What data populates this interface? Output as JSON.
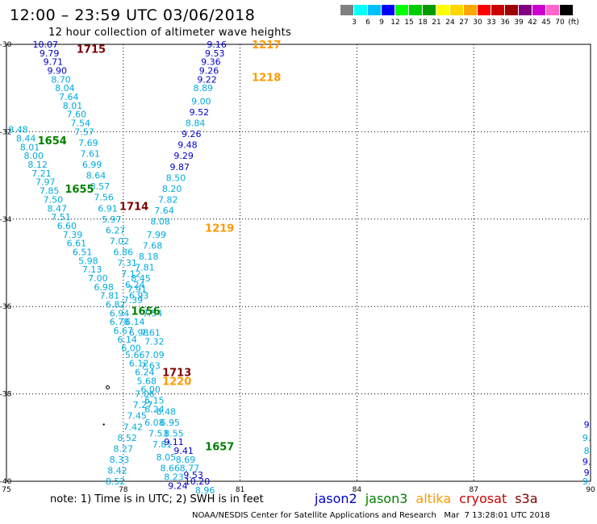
{
  "header": {
    "title": "12:00 – 23:59 UTC 03/06/2018",
    "subtitle": "12 hour collection of altimeter wave heights"
  },
  "colorbar": {
    "colors": [
      "#808080",
      "#00ffff",
      "#00bfff",
      "#0000ff",
      "#00ff00",
      "#00cc00",
      "#009900",
      "#ffff00",
      "#ffd700",
      "#ffa500",
      "#ff0000",
      "#cc0000",
      "#990000",
      "#800080",
      "#cc00cc",
      "#ff66cc",
      "#000000"
    ],
    "labels": [
      "3",
      "6",
      "9",
      "12",
      "15",
      "18",
      "21",
      "24",
      "27",
      "30",
      "33",
      "36",
      "39",
      "42",
      "45",
      "70",
      "(ft)"
    ]
  },
  "axes": {
    "x_ticks": [
      "75",
      "78",
      "81",
      "84",
      "87",
      "90"
    ],
    "y_ticks": [
      "-30",
      "-32",
      "-34",
      "-36",
      "-38",
      "-40"
    ]
  },
  "satellites": [
    {
      "name": "jason2",
      "color": "#0000cc"
    },
    {
      "name": "jason3",
      "color": "#008000"
    },
    {
      "name": "altika",
      "color": "#ff9900"
    },
    {
      "name": "cryosat",
      "color": "#cc0000"
    },
    {
      "name": "s3a",
      "color": "#800000"
    }
  ],
  "chart_data": {
    "type": "scatter",
    "xlim": [
      75,
      90
    ],
    "ylim": [
      -40,
      -30
    ],
    "grid": true,
    "time_labels": [
      {
        "text": "1715",
        "lon": 76.8,
        "lat": -30.1,
        "color": "#800000"
      },
      {
        "text": "1217",
        "lon": 81.3,
        "lat": -30.0,
        "color": "#ff9900"
      },
      {
        "text": "1218",
        "lon": 81.3,
        "lat": -30.75,
        "color": "#ff9900"
      },
      {
        "text": "1654",
        "lon": 75.8,
        "lat": -32.2,
        "color": "#008000"
      },
      {
        "text": "1655",
        "lon": 76.5,
        "lat": -33.3,
        "color": "#008000"
      },
      {
        "text": "1714",
        "lon": 77.9,
        "lat": -33.7,
        "color": "#800000"
      },
      {
        "text": "1219",
        "lon": 80.1,
        "lat": -34.2,
        "color": "#ff9900"
      },
      {
        "text": "1656",
        "lon": 78.2,
        "lat": -36.1,
        "color": "#008000"
      },
      {
        "text": "1713",
        "lon": 79.0,
        "lat": -37.5,
        "color": "#800000"
      },
      {
        "text": "1220",
        "lon": 79.0,
        "lat": -37.7,
        "color": "#ff9900"
      },
      {
        "text": "1657",
        "lon": 80.1,
        "lat": -39.2,
        "color": "#008000"
      }
    ],
    "swh_points": [
      {
        "lon": 76.0,
        "lat": -30.0,
        "v": "10.07",
        "c": "#0000cc"
      },
      {
        "lon": 76.1,
        "lat": -30.2,
        "v": "9.79",
        "c": "#0000cc"
      },
      {
        "lon": 76.2,
        "lat": -30.4,
        "v": "9.71",
        "c": "#0000cc"
      },
      {
        "lon": 76.3,
        "lat": -30.6,
        "v": "9.90",
        "c": "#0000cc"
      },
      {
        "lon": 76.4,
        "lat": -30.8,
        "v": "8.70",
        "c": "#00aadd"
      },
      {
        "lon": 76.5,
        "lat": -31.0,
        "v": "8.04",
        "c": "#00aadd"
      },
      {
        "lon": 76.6,
        "lat": -31.2,
        "v": "7.64",
        "c": "#00aadd"
      },
      {
        "lon": 76.7,
        "lat": -31.4,
        "v": "8.01",
        "c": "#00aadd"
      },
      {
        "lon": 76.8,
        "lat": -31.6,
        "v": "7.60",
        "c": "#00aadd"
      },
      {
        "lon": 76.9,
        "lat": -31.8,
        "v": "7.54",
        "c": "#00aadd"
      },
      {
        "lon": 77.0,
        "lat": -32.0,
        "v": "7.57",
        "c": "#00aadd"
      },
      {
        "lon": 77.1,
        "lat": -32.25,
        "v": "7.69",
        "c": "#00aadd"
      },
      {
        "lon": 77.15,
        "lat": -32.5,
        "v": "7.61",
        "c": "#00aadd"
      },
      {
        "lon": 77.2,
        "lat": -32.75,
        "v": "6.99",
        "c": "#00aadd"
      },
      {
        "lon": 77.3,
        "lat": -33.0,
        "v": "8.64",
        "c": "#00aadd"
      },
      {
        "lon": 77.4,
        "lat": -33.25,
        "v": "8.57",
        "c": "#00aadd"
      },
      {
        "lon": 77.5,
        "lat": -33.5,
        "v": "7.56",
        "c": "#00aadd"
      },
      {
        "lon": 77.6,
        "lat": -33.75,
        "v": "6.91",
        "c": "#00aadd"
      },
      {
        "lon": 77.7,
        "lat": -34.0,
        "v": "5.97",
        "c": "#00aadd"
      },
      {
        "lon": 77.8,
        "lat": -34.25,
        "v": "6.27",
        "c": "#00aadd"
      },
      {
        "lon": 77.9,
        "lat": -34.5,
        "v": "7.02",
        "c": "#00aadd"
      },
      {
        "lon": 78.0,
        "lat": -34.75,
        "v": "6.86",
        "c": "#00aadd"
      },
      {
        "lon": 78.1,
        "lat": -35.0,
        "v": "7.31",
        "c": "#00aadd"
      },
      {
        "lon": 78.2,
        "lat": -35.25,
        "v": "7.12",
        "c": "#00aadd"
      },
      {
        "lon": 78.3,
        "lat": -35.5,
        "v": "6.24",
        "c": "#00aadd"
      },
      {
        "lon": 78.4,
        "lat": -35.75,
        "v": "6.93",
        "c": "#00aadd"
      },
      {
        "lon": 75.3,
        "lat": -31.95,
        "v": "8.48",
        "c": "#00aadd"
      },
      {
        "lon": 75.5,
        "lat": -32.15,
        "v": "8.44",
        "c": "#00aadd"
      },
      {
        "lon": 75.6,
        "lat": -32.35,
        "v": "8.01",
        "c": "#00aadd"
      },
      {
        "lon": 75.7,
        "lat": -32.55,
        "v": "8.00",
        "c": "#00aadd"
      },
      {
        "lon": 75.8,
        "lat": -32.75,
        "v": "8.12",
        "c": "#00aadd"
      },
      {
        "lon": 75.9,
        "lat": -32.95,
        "v": "7.21",
        "c": "#00aadd"
      },
      {
        "lon": 76.0,
        "lat": -33.15,
        "v": "7.97",
        "c": "#00aadd"
      },
      {
        "lon": 76.1,
        "lat": -33.35,
        "v": "7.85",
        "c": "#00aadd"
      },
      {
        "lon": 76.2,
        "lat": -33.55,
        "v": "7.50",
        "c": "#00aadd"
      },
      {
        "lon": 76.3,
        "lat": -33.75,
        "v": "8.47",
        "c": "#00aadd"
      },
      {
        "lon": 76.4,
        "lat": -33.95,
        "v": "7.51",
        "c": "#00aadd"
      },
      {
        "lon": 76.55,
        "lat": -34.15,
        "v": "6.60",
        "c": "#00aadd"
      },
      {
        "lon": 76.7,
        "lat": -34.35,
        "v": "7.39",
        "c": "#00aadd"
      },
      {
        "lon": 76.8,
        "lat": -34.55,
        "v": "6.61",
        "c": "#00aadd"
      },
      {
        "lon": 76.95,
        "lat": -34.75,
        "v": "6.51",
        "c": "#00aadd"
      },
      {
        "lon": 77.1,
        "lat": -34.95,
        "v": "5.98",
        "c": "#00aadd"
      },
      {
        "lon": 77.2,
        "lat": -35.15,
        "v": "7.13",
        "c": "#00aadd"
      },
      {
        "lon": 77.35,
        "lat": -35.35,
        "v": "7.00",
        "c": "#00aadd"
      },
      {
        "lon": 77.5,
        "lat": -35.55,
        "v": "6.98",
        "c": "#00aadd"
      },
      {
        "lon": 77.65,
        "lat": -35.75,
        "v": "7.81",
        "c": "#00aadd"
      },
      {
        "lon": 77.8,
        "lat": -35.95,
        "v": "6.82",
        "c": "#00aadd"
      },
      {
        "lon": 77.9,
        "lat": -36.15,
        "v": "6.94",
        "c": "#00aadd"
      },
      {
        "lon": 77.9,
        "lat": -36.35,
        "v": "6.78",
        "c": "#00aadd"
      },
      {
        "lon": 78.0,
        "lat": -36.55,
        "v": "6.67",
        "c": "#00aadd"
      },
      {
        "lon": 78.1,
        "lat": -36.75,
        "v": "6.14",
        "c": "#00aadd"
      },
      {
        "lon": 78.3,
        "lat": -36.35,
        "v": "6.14",
        "c": "#00aadd"
      },
      {
        "lon": 78.4,
        "lat": -36.6,
        "v": "6.98",
        "c": "#00aadd"
      },
      {
        "lon": 78.2,
        "lat": -36.95,
        "v": "6.00",
        "c": "#00aadd"
      },
      {
        "lon": 78.3,
        "lat": -37.1,
        "v": "5.66",
        "c": "#00aadd"
      },
      {
        "lon": 78.4,
        "lat": -37.3,
        "v": "6.12",
        "c": "#00aadd"
      },
      {
        "lon": 78.55,
        "lat": -37.5,
        "v": "6.24",
        "c": "#00aadd"
      },
      {
        "lon": 78.6,
        "lat": -37.7,
        "v": "5.68",
        "c": "#00aadd"
      },
      {
        "lon": 78.7,
        "lat": -37.9,
        "v": "6.00",
        "c": "#00aadd"
      },
      {
        "lon": 78.55,
        "lat": -38.0,
        "v": "7.06",
        "c": "#00aadd"
      },
      {
        "lon": 78.5,
        "lat": -38.25,
        "v": "7.27",
        "c": "#00aadd"
      },
      {
        "lon": 78.35,
        "lat": -38.5,
        "v": "7.45",
        "c": "#00aadd"
      },
      {
        "lon": 78.25,
        "lat": -38.75,
        "v": "7.42",
        "c": "#00aadd"
      },
      {
        "lon": 78.1,
        "lat": -39.0,
        "v": "8.52",
        "c": "#00aadd"
      },
      {
        "lon": 78.0,
        "lat": -39.25,
        "v": "8.27",
        "c": "#00aadd"
      },
      {
        "lon": 77.9,
        "lat": -39.5,
        "v": "8.33",
        "c": "#00aadd"
      },
      {
        "lon": 77.85,
        "lat": -39.75,
        "v": "8.42",
        "c": "#00aadd"
      },
      {
        "lon": 77.8,
        "lat": -40.0,
        "v": "8.52",
        "c": "#00aadd"
      },
      {
        "lon": 78.7,
        "lat": -36.6,
        "v": "7.61",
        "c": "#00aadd"
      },
      {
        "lon": 78.8,
        "lat": -36.8,
        "v": "7.32",
        "c": "#00aadd"
      },
      {
        "lon": 78.8,
        "lat": -37.1,
        "v": "7.09",
        "c": "#00aadd"
      },
      {
        "lon": 78.7,
        "lat": -37.35,
        "v": "7.63",
        "c": "#00aadd"
      },
      {
        "lon": 78.8,
        "lat": -38.15,
        "v": "6.15",
        "c": "#00aadd"
      },
      {
        "lon": 78.8,
        "lat": -38.35,
        "v": "6.24",
        "c": "#00aadd"
      },
      {
        "lon": 79.1,
        "lat": -38.4,
        "v": "6.48",
        "c": "#00aadd"
      },
      {
        "lon": 78.8,
        "lat": -38.65,
        "v": "6.08",
        "c": "#00aadd"
      },
      {
        "lon": 79.2,
        "lat": -38.65,
        "v": "6.95",
        "c": "#00aadd"
      },
      {
        "lon": 78.9,
        "lat": -38.9,
        "v": "7.53",
        "c": "#00aadd"
      },
      {
        "lon": 79.3,
        "lat": -38.9,
        "v": "8.55",
        "c": "#00aadd"
      },
      {
        "lon": 79.0,
        "lat": -39.15,
        "v": "7.81",
        "c": "#00aadd"
      },
      {
        "lon": 79.1,
        "lat": -39.45,
        "v": "8.05",
        "c": "#00aadd"
      },
      {
        "lon": 79.2,
        "lat": -39.7,
        "v": "8.66",
        "c": "#00aadd"
      },
      {
        "lon": 79.3,
        "lat": -39.9,
        "v": "8.23",
        "c": "#00aadd"
      },
      {
        "lon": 79.6,
        "lat": -39.5,
        "v": "8.69",
        "c": "#00aadd"
      },
      {
        "lon": 79.7,
        "lat": -39.7,
        "v": "8.77",
        "c": "#00aadd"
      },
      {
        "lon": 80.1,
        "lat": -40.2,
        "v": "8.96",
        "c": "#00aadd"
      },
      {
        "lon": 79.3,
        "lat": -39.1,
        "v": "9.11",
        "c": "#0000cc"
      },
      {
        "lon": 79.55,
        "lat": -39.3,
        "v": "9.41",
        "c": "#0000cc"
      },
      {
        "lon": 79.4,
        "lat": -40.1,
        "v": "9.24",
        "c": "#0000cc"
      },
      {
        "lon": 79.8,
        "lat": -39.85,
        "v": "9.53",
        "c": "#0000cc"
      },
      {
        "lon": 79.9,
        "lat": -40.0,
        "v": "10.20",
        "c": "#0000cc"
      },
      {
        "lon": 80.4,
        "lat": -30.0,
        "v": "9.16",
        "c": "#0000cc"
      },
      {
        "lon": 80.35,
        "lat": -30.2,
        "v": "9.53",
        "c": "#0000cc"
      },
      {
        "lon": 80.25,
        "lat": -30.4,
        "v": "9.36",
        "c": "#0000cc"
      },
      {
        "lon": 80.2,
        "lat": -30.6,
        "v": "9.26",
        "c": "#0000cc"
      },
      {
        "lon": 80.15,
        "lat": -30.8,
        "v": "9.22",
        "c": "#0000cc"
      },
      {
        "lon": 80.05,
        "lat": -31.0,
        "v": "8.89",
        "c": "#00aadd"
      },
      {
        "lon": 80.0,
        "lat": -31.3,
        "v": "9.00",
        "c": "#00aadd"
      },
      {
        "lon": 79.95,
        "lat": -31.55,
        "v": "9.52",
        "c": "#0000cc"
      },
      {
        "lon": 79.85,
        "lat": -31.8,
        "v": "8.84",
        "c": "#00aadd"
      },
      {
        "lon": 79.75,
        "lat": -32.05,
        "v": "9.26",
        "c": "#0000cc"
      },
      {
        "lon": 79.65,
        "lat": -32.3,
        "v": "9.48",
        "c": "#0000cc"
      },
      {
        "lon": 79.55,
        "lat": -32.55,
        "v": "9.29",
        "c": "#0000cc"
      },
      {
        "lon": 79.45,
        "lat": -32.8,
        "v": "9.87",
        "c": "#0000cc"
      },
      {
        "lon": 79.35,
        "lat": -33.05,
        "v": "8.50",
        "c": "#00aadd"
      },
      {
        "lon": 79.25,
        "lat": -33.3,
        "v": "8.20",
        "c": "#00aadd"
      },
      {
        "lon": 79.15,
        "lat": -33.55,
        "v": "7.82",
        "c": "#00aadd"
      },
      {
        "lon": 79.05,
        "lat": -33.8,
        "v": "7.64",
        "c": "#00aadd"
      },
      {
        "lon": 78.95,
        "lat": -34.05,
        "v": "8.08",
        "c": "#00aadd"
      },
      {
        "lon": 78.85,
        "lat": -34.35,
        "v": "7.99",
        "c": "#00aadd"
      },
      {
        "lon": 78.75,
        "lat": -34.6,
        "v": "7.68",
        "c": "#00aadd"
      },
      {
        "lon": 78.65,
        "lat": -34.85,
        "v": "8.18",
        "c": "#00aadd"
      },
      {
        "lon": 78.55,
        "lat": -35.1,
        "v": "7.81",
        "c": "#00aadd"
      },
      {
        "lon": 78.45,
        "lat": -35.35,
        "v": "8.45",
        "c": "#00aadd"
      },
      {
        "lon": 78.35,
        "lat": -35.6,
        "v": "7.91",
        "c": "#00aadd"
      },
      {
        "lon": 78.25,
        "lat": -35.85,
        "v": "7.39",
        "c": "#00aadd"
      },
      {
        "lon": 78.75,
        "lat": -36.15,
        "v": "7.54",
        "c": "#00aadd"
      },
      {
        "lon": 89.9,
        "lat": -38.7,
        "v": "9",
        "c": "#0000cc"
      },
      {
        "lon": 89.9,
        "lat": -39.0,
        "v": "9.",
        "c": "#00aadd"
      },
      {
        "lon": 89.9,
        "lat": -39.3,
        "v": "8",
        "c": "#00aadd"
      },
      {
        "lon": 89.9,
        "lat": -39.55,
        "v": "9.",
        "c": "#0000cc"
      },
      {
        "lon": 89.9,
        "lat": -39.8,
        "v": "9",
        "c": "#0000cc"
      },
      {
        "lon": 89.9,
        "lat": -40.0,
        "v": "9.",
        "c": "#00aadd"
      }
    ]
  },
  "note": "note: 1) Time is in UTC; 2) SWH is in feet",
  "credit": "NOAA/NESDIS Center for Satellite Applications and Research   Mar  7 13:28:01 UTC 2018"
}
